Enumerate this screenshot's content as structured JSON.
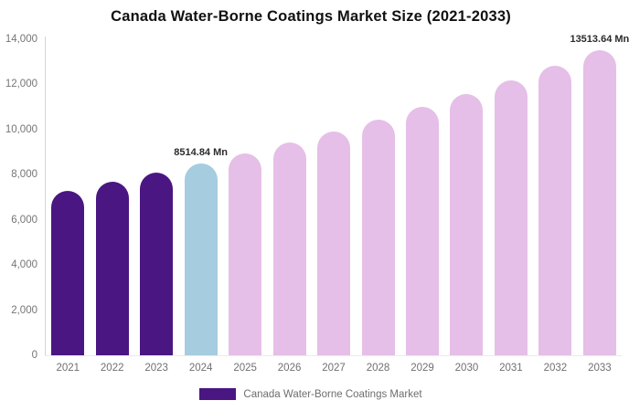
{
  "title": "Canada Water-Borne Coatings Market Size (2021-2033)",
  "chart_data": {
    "type": "bar",
    "title": "Canada Water-Borne Coatings Market Size (2021-2033)",
    "unit": "Mn",
    "categories": [
      "2021",
      "2022",
      "2023",
      "2024",
      "2025",
      "2026",
      "2027",
      "2028",
      "2029",
      "2030",
      "2031",
      "2032",
      "2033"
    ],
    "values": [
      7300,
      7700,
      8100,
      8514.84,
      8963,
      9435,
      9932,
      10455,
      11006,
      11586,
      12196,
      12838,
      13513.64
    ],
    "bar_colors": [
      "#4A1682",
      "#4A1682",
      "#4A1682",
      "#A5CCDF",
      "#E5BFE7",
      "#E5BFE7",
      "#E5BFE7",
      "#E5BFE7",
      "#E5BFE7",
      "#E5BFE7",
      "#E5BFE7",
      "#E5BFE7",
      "#E5BFE7"
    ],
    "segment_colors": {
      "historical": "#4A1682",
      "highlight": "#A5CCDF",
      "forecast": "#E5BFE7"
    },
    "annotations": [
      {
        "index": 3,
        "text": "8514.84 Mn"
      },
      {
        "index": 12,
        "text": "13513.64 Mn"
      }
    ],
    "ylim": [
      0,
      14000
    ],
    "yticks": [
      "0",
      "2,000",
      "4,000",
      "6,000",
      "8,000",
      "10,000",
      "12,000",
      "14,000"
    ],
    "xlabel": "",
    "ylabel": "",
    "grid": false,
    "legend_position": "bottom"
  },
  "legend": {
    "label": "Canada Water-Borne Coatings Market",
    "swatch_color": "#4A1682"
  }
}
